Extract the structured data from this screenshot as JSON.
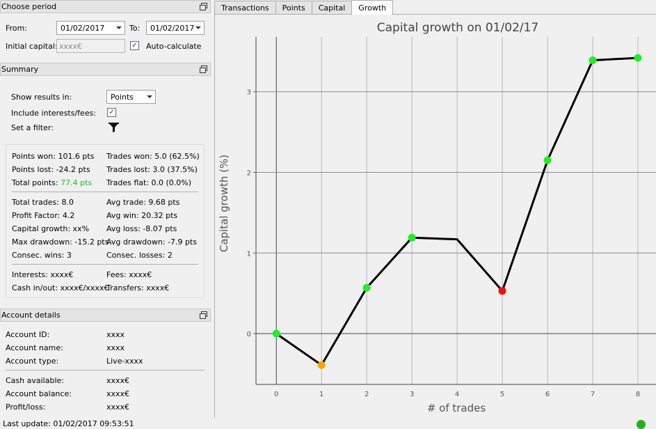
{
  "period": {
    "title": "Choose period",
    "from_label": "From:",
    "from_value": "01/02/2017",
    "to_label": "To:",
    "to_value": "01/02/2017",
    "capital_label": "Initial capital:",
    "capital_placeholder": "xxxx€",
    "auto_label": "Auto-calculate",
    "auto_checked": "✓"
  },
  "summary": {
    "title": "Summary",
    "show_label": "Show results in:",
    "show_value": "Points",
    "include_label": "Include interests/fees:",
    "include_checked": "✓",
    "filter_label": "Set a filter:",
    "stats": {
      "points_won": "Points won: 101.6 pts",
      "points_lost": "Points lost: -24.2 pts",
      "total_points_label": "Total points: ",
      "total_points_value": "77.4 pts",
      "trades_won": "Trades won: 5.0 (62.5%)",
      "trades_lost": "Trades lost: 3.0 (37.5%)",
      "trades_flat": "Trades flat: 0.0 (0.0%)",
      "total_trades": "Total trades: 8.0",
      "profit_factor": "Profit Factor: 4.2",
      "capital_growth": "Capital growth: xx%",
      "max_drawdown": "Max drawdown: -15.2 pts",
      "consec_wins": "Consec. wins: 3",
      "avg_trade": "Avg trade: 9.68 pts",
      "avg_win": "Avg win: 20.32 pts",
      "avg_loss": "Avg loss: -8.07 pts",
      "avg_drawdown": "Avg drawdown: -7.9 pts",
      "consec_losses": "Consec. losses: 2",
      "interests": "Interests: xxxx€",
      "cash_inout": "Cash in/out: xxxx€/xxxx€",
      "fees": "Fees: xxxx€",
      "transfers": "Transfers: xxxx€"
    }
  },
  "account": {
    "title": "Account details",
    "id_label": "Account ID:",
    "id_value": "xxxx",
    "name_label": "Account name:",
    "name_value": "xxxx",
    "type_label": "Account type:",
    "type_value": "Live-xxxx",
    "cash_label": "Cash available:",
    "cash_value": "xxxx€",
    "balance_label": "Account balance:",
    "balance_value": "xxxx€",
    "pl_label": "Profit/loss:",
    "pl_value": "xxxx€"
  },
  "tabs": [
    "Transactions",
    "Points",
    "Capital",
    "Growth"
  ],
  "active_tab": "Growth",
  "status": {
    "text": "Last update: 01/02/2017 09:53:51",
    "indicator_color": "#1db31d"
  },
  "colors": {
    "positive": "#22bb22",
    "point_green": "#22ee22",
    "point_orange": "#ffa500",
    "point_red": "#ee1111"
  },
  "chart_data": {
    "type": "line",
    "title": "Capital growth on 01/02/17",
    "xlabel": "# of trades",
    "ylabel": "Capital growth (%)",
    "x": [
      0,
      1,
      2,
      3,
      4,
      5,
      6,
      7,
      8
    ],
    "series": [
      {
        "values": [
          0.0,
          -0.39,
          0.57,
          1.19,
          1.17,
          0.53,
          2.15,
          3.39,
          3.42
        ],
        "point_colors": [
          "green",
          "orange",
          "green",
          "green",
          "none",
          "red",
          "green",
          "green",
          "green"
        ]
      }
    ],
    "xlim": [
      -0.45,
      8.4
    ],
    "ylim": [
      -0.63,
      3.68
    ],
    "xticks": [
      0,
      1,
      2,
      3,
      4,
      5,
      6,
      7,
      8
    ],
    "yticks": [
      0,
      1,
      2,
      3
    ],
    "grid": true
  }
}
